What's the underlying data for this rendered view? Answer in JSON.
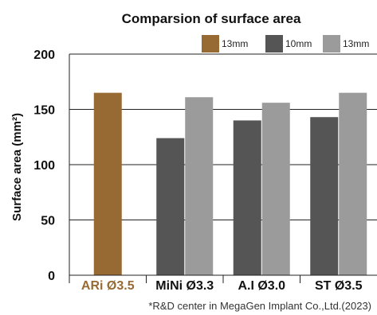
{
  "chart_data": {
    "type": "bar",
    "title": "Comparsion of surface area",
    "ylabel": "Surface area (mm²)",
    "xlabel": "",
    "ylim": [
      0,
      200
    ],
    "yticks": [
      0,
      50,
      100,
      150,
      200
    ],
    "grid": true,
    "legend_position": "top-right",
    "categories": [
      "ARi Ø3.5",
      "MiNi Ø3.3",
      "A.I Ø3.0",
      "ST Ø3.5"
    ],
    "category_label_colors": [
      "#976a34",
      "#111111",
      "#111111",
      "#111111"
    ],
    "series": [
      {
        "name": "13mm",
        "color": "#976a34",
        "values": [
          165,
          null,
          null,
          null
        ]
      },
      {
        "name": "10mm",
        "color": "#555555",
        "values": [
          null,
          124,
          140,
          143
        ]
      },
      {
        "name": "13mm",
        "color": "#9b9b9b",
        "values": [
          null,
          161,
          156,
          165
        ]
      }
    ],
    "footnote": "*R&D center in MegaGen Implant Co.,Ltd.(2023)"
  }
}
